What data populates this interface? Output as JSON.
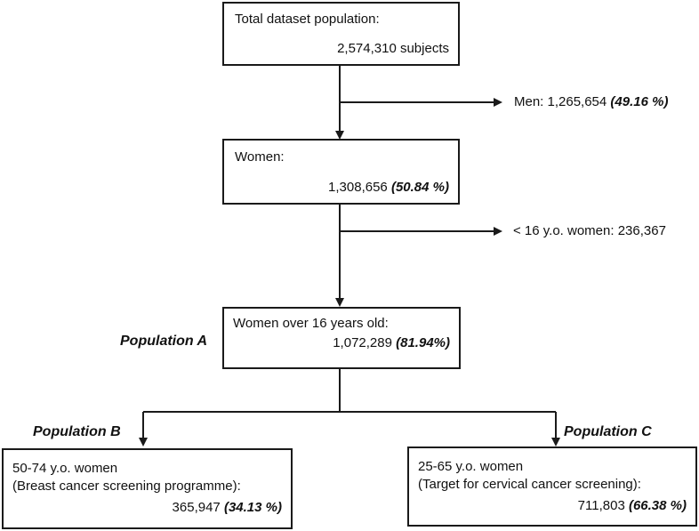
{
  "total_box": {
    "title": "Total dataset population:",
    "value": "2,574,310 subjects"
  },
  "men_branch": {
    "label": "Men: 1,265,654",
    "pct": "(49.16 %)"
  },
  "women_box": {
    "title": "Women:",
    "value": "1,308,656",
    "pct": "(50.84 %)"
  },
  "under16_branch": {
    "label": "< 16 y.o. women: 236,367"
  },
  "over16_box": {
    "title": "Women over 16 years old:",
    "value": "1,072,289",
    "pct": "(81.94%)"
  },
  "population_a": "Population A",
  "population_b": "Population B",
  "population_c": "Population C",
  "breast_box": {
    "line1": "50-74 y.o. women",
    "line2": "(Breast cancer screening programme):",
    "value": "365,947",
    "pct": "(34.13 %)"
  },
  "cervical_box": {
    "line1": "25-65 y.o. women",
    "line2": "(Target for cervical cancer screening):",
    "value": "711,803",
    "pct": "(66.38 %)"
  },
  "colors": {
    "line": "#1a1a1a",
    "text": "#111111",
    "background": "#ffffff"
  }
}
